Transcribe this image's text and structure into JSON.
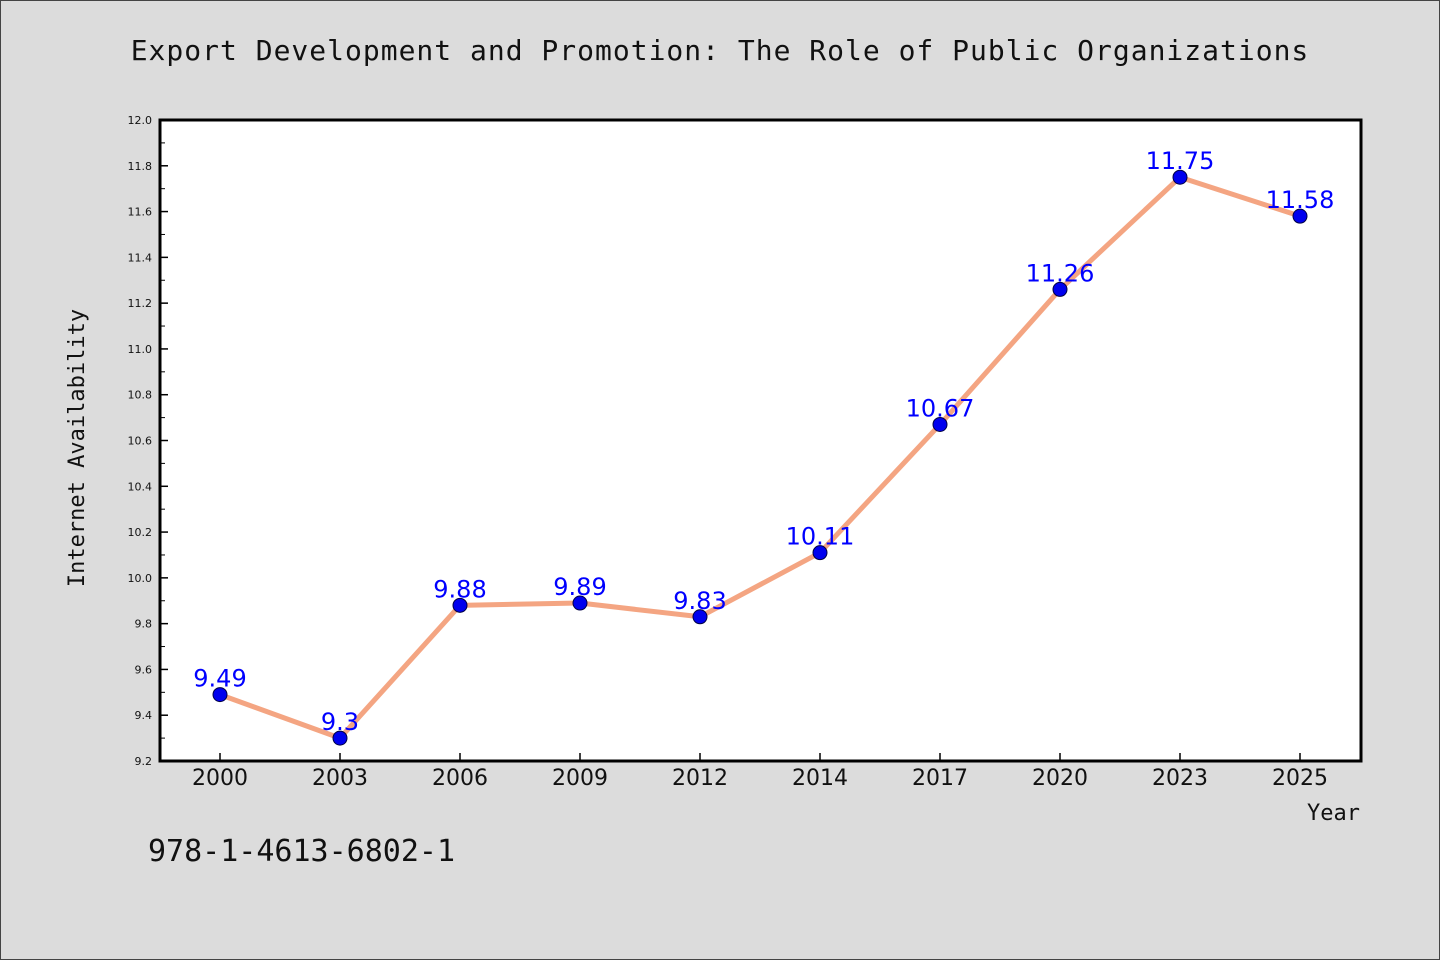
{
  "chart_data": {
    "type": "line",
    "title": "Export Development and Promotion: The Role of Public Organizations",
    "xlabel": "Year",
    "ylabel": "Internet Availability",
    "categories": [
      "2000",
      "2003",
      "2006",
      "2009",
      "2012",
      "2014",
      "2017",
      "2020",
      "2023",
      "2025"
    ],
    "series": [
      {
        "values": [
          9.49,
          9.3,
          9.88,
          9.89,
          9.83,
          10.11,
          10.67,
          11.26,
          11.75,
          11.58
        ],
        "data_labels": [
          "9.49",
          "9.3",
          "9.88",
          "9.89",
          "9.83",
          "10.11",
          "10.67",
          "11.26",
          "11.75",
          "11.58"
        ]
      }
    ],
    "ylim": [
      9.2,
      12.0
    ],
    "yticks": [
      "9.2",
      "9.4",
      "9.6",
      "9.8",
      "10.0",
      "10.2",
      "10.4",
      "10.6",
      "10.8",
      "11.0",
      "11.2",
      "11.4",
      "11.6",
      "11.8",
      "12.0"
    ],
    "grid": false,
    "legend": "none",
    "colors": {
      "line": "#f4a582",
      "marker": "#0000ee",
      "label": "#0000ff",
      "background": "#dcdcdc",
      "plot": "#ffffff"
    }
  },
  "footer": {
    "isbn": "978-1-4613-6802-1"
  }
}
